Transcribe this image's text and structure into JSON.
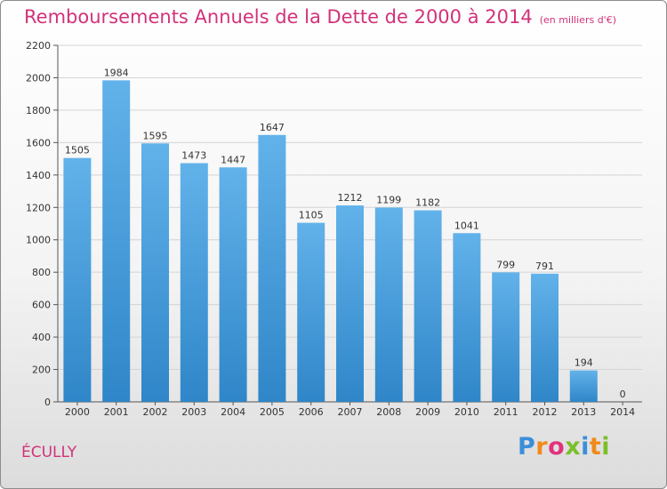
{
  "header": {
    "title": "Remboursements Annuels de la Dette de 2000 à 2014",
    "unit": "(en milliers d'€)"
  },
  "footer": {
    "city": "ÉCULLY",
    "brand_letters": [
      {
        "char": "P",
        "color": "#3a8fd8"
      },
      {
        "char": "r",
        "color": "#f08a1a"
      },
      {
        "char": "o",
        "color": "#e2327e"
      },
      {
        "char": "x",
        "color": "#7bbf2a"
      },
      {
        "char": "i",
        "color": "#3a8fd8"
      },
      {
        "char": "t",
        "color": "#f08a1a"
      },
      {
        "char": "i",
        "color": "#7bbf2a"
      }
    ]
  },
  "colors": {
    "bar_top": "#62b2ea",
    "bar_bottom": "#2f86c8",
    "title": "#d2327a"
  },
  "chart_data": {
    "type": "bar",
    "categories": [
      "2000",
      "2001",
      "2002",
      "2003",
      "2004",
      "2005",
      "2006",
      "2007",
      "2008",
      "2009",
      "2010",
      "2011",
      "2012",
      "2013",
      "2014"
    ],
    "values": [
      1505,
      1984,
      1595,
      1473,
      1447,
      1647,
      1105,
      1212,
      1199,
      1182,
      1041,
      799,
      791,
      194,
      0
    ],
    "ylim": [
      0,
      2200
    ],
    "yticks": [
      0,
      200,
      400,
      600,
      800,
      1000,
      1200,
      1400,
      1600,
      1800,
      2000,
      2200
    ],
    "grid": true,
    "data_labels": true
  }
}
